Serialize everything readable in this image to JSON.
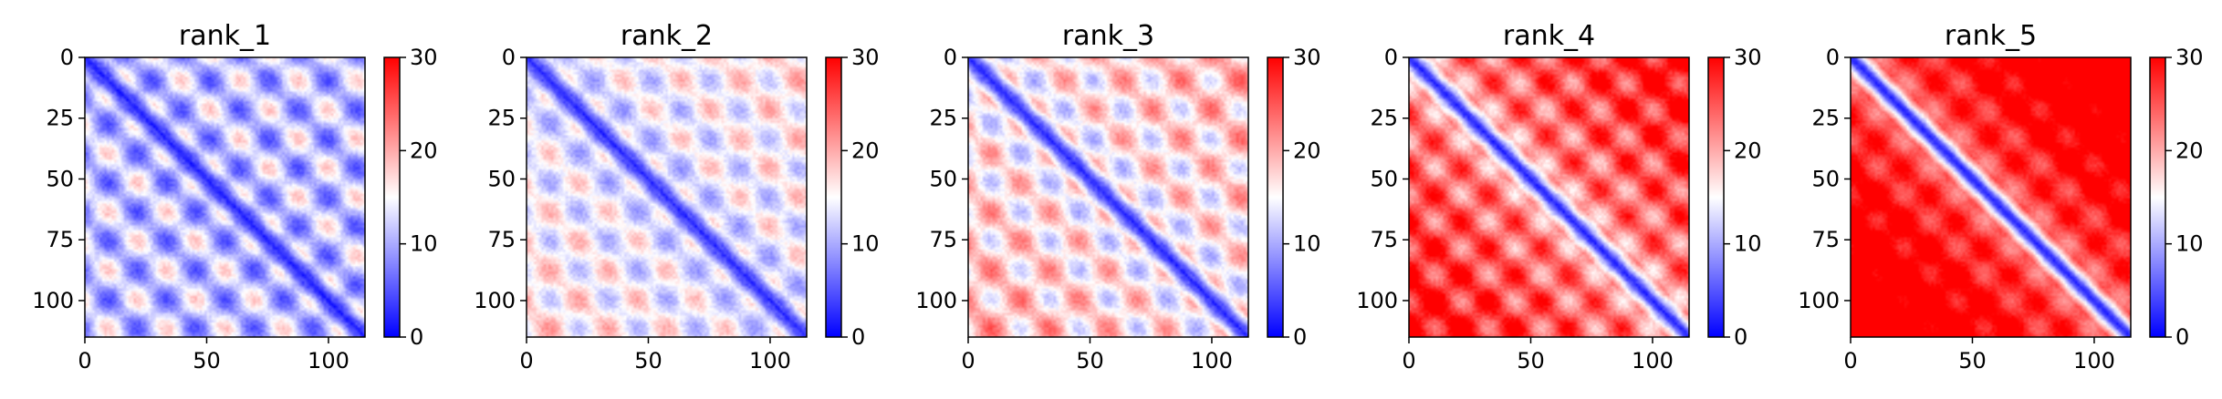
{
  "chart_data": [
    {
      "type": "heatmap",
      "title": "rank_1",
      "xlim": [
        0,
        115
      ],
      "ylim": [
        115,
        0
      ],
      "x_ticks": [
        "0",
        "50",
        "100"
      ],
      "y_ticks": [
        "0",
        "25",
        "50",
        "75",
        "100"
      ],
      "colorbar": {
        "colormap": "bwr",
        "range": [
          0,
          30
        ],
        "ticks": [
          "0",
          "10",
          "20",
          "30"
        ]
      },
      "pattern": {
        "diag": 1.5,
        "base": 11.5,
        "amp": 7,
        "decay": 0.0,
        "period": 24,
        "offset": 6,
        "noise": 2.5
      }
    },
    {
      "type": "heatmap",
      "title": "rank_2",
      "xlim": [
        0,
        115
      ],
      "ylim": [
        115,
        0
      ],
      "x_ticks": [
        "0",
        "50",
        "100"
      ],
      "y_ticks": [
        "0",
        "25",
        "50",
        "75",
        "100"
      ],
      "colorbar": {
        "colormap": "bwr",
        "range": [
          0,
          30
        ],
        "ticks": [
          "0",
          "10",
          "20",
          "30"
        ]
      },
      "pattern": {
        "diag": 2,
        "base": 13,
        "amp": 5,
        "decay": 0.035,
        "period": 24,
        "offset": 6,
        "noise": 2.5
      }
    },
    {
      "type": "heatmap",
      "title": "rank_3",
      "xlim": [
        0,
        115
      ],
      "ylim": [
        115,
        0
      ],
      "x_ticks": [
        "0",
        "50",
        "100"
      ],
      "y_ticks": [
        "0",
        "25",
        "50",
        "75",
        "100"
      ],
      "colorbar": {
        "colormap": "bwr",
        "range": [
          0,
          30
        ],
        "ticks": [
          "0",
          "10",
          "20",
          "30"
        ]
      },
      "pattern": {
        "diag": 2,
        "base": 15,
        "amp": 6,
        "decay": 0.04,
        "period": 24,
        "offset": 6,
        "noise": 2.5
      }
    },
    {
      "type": "heatmap",
      "title": "rank_4",
      "xlim": [
        0,
        115
      ],
      "ylim": [
        115,
        0
      ],
      "x_ticks": [
        "0",
        "50",
        "100"
      ],
      "y_ticks": [
        "0",
        "25",
        "50",
        "75",
        "100"
      ],
      "colorbar": {
        "colormap": "bwr",
        "range": [
          0,
          30
        ],
        "ticks": [
          "0",
          "10",
          "20",
          "30"
        ]
      },
      "pattern": {
        "diag": 2,
        "base": 21,
        "amp": 6,
        "decay": 0.08,
        "period": 22,
        "offset": 2,
        "noise": 2.5
      }
    },
    {
      "type": "heatmap",
      "title": "rank_5",
      "xlim": [
        0,
        115
      ],
      "ylim": [
        115,
        0
      ],
      "x_ticks": [
        "0",
        "50",
        "100"
      ],
      "y_ticks": [
        "0",
        "25",
        "50",
        "75",
        "100"
      ],
      "colorbar": {
        "colormap": "bwr",
        "range": [
          0,
          30
        ],
        "ticks": [
          "0",
          "10",
          "20",
          "30"
        ]
      },
      "pattern": {
        "diag": 2,
        "base": 24,
        "amp": 4,
        "decay": 0.12,
        "period": 22,
        "offset": 2,
        "noise": 2
      }
    }
  ]
}
